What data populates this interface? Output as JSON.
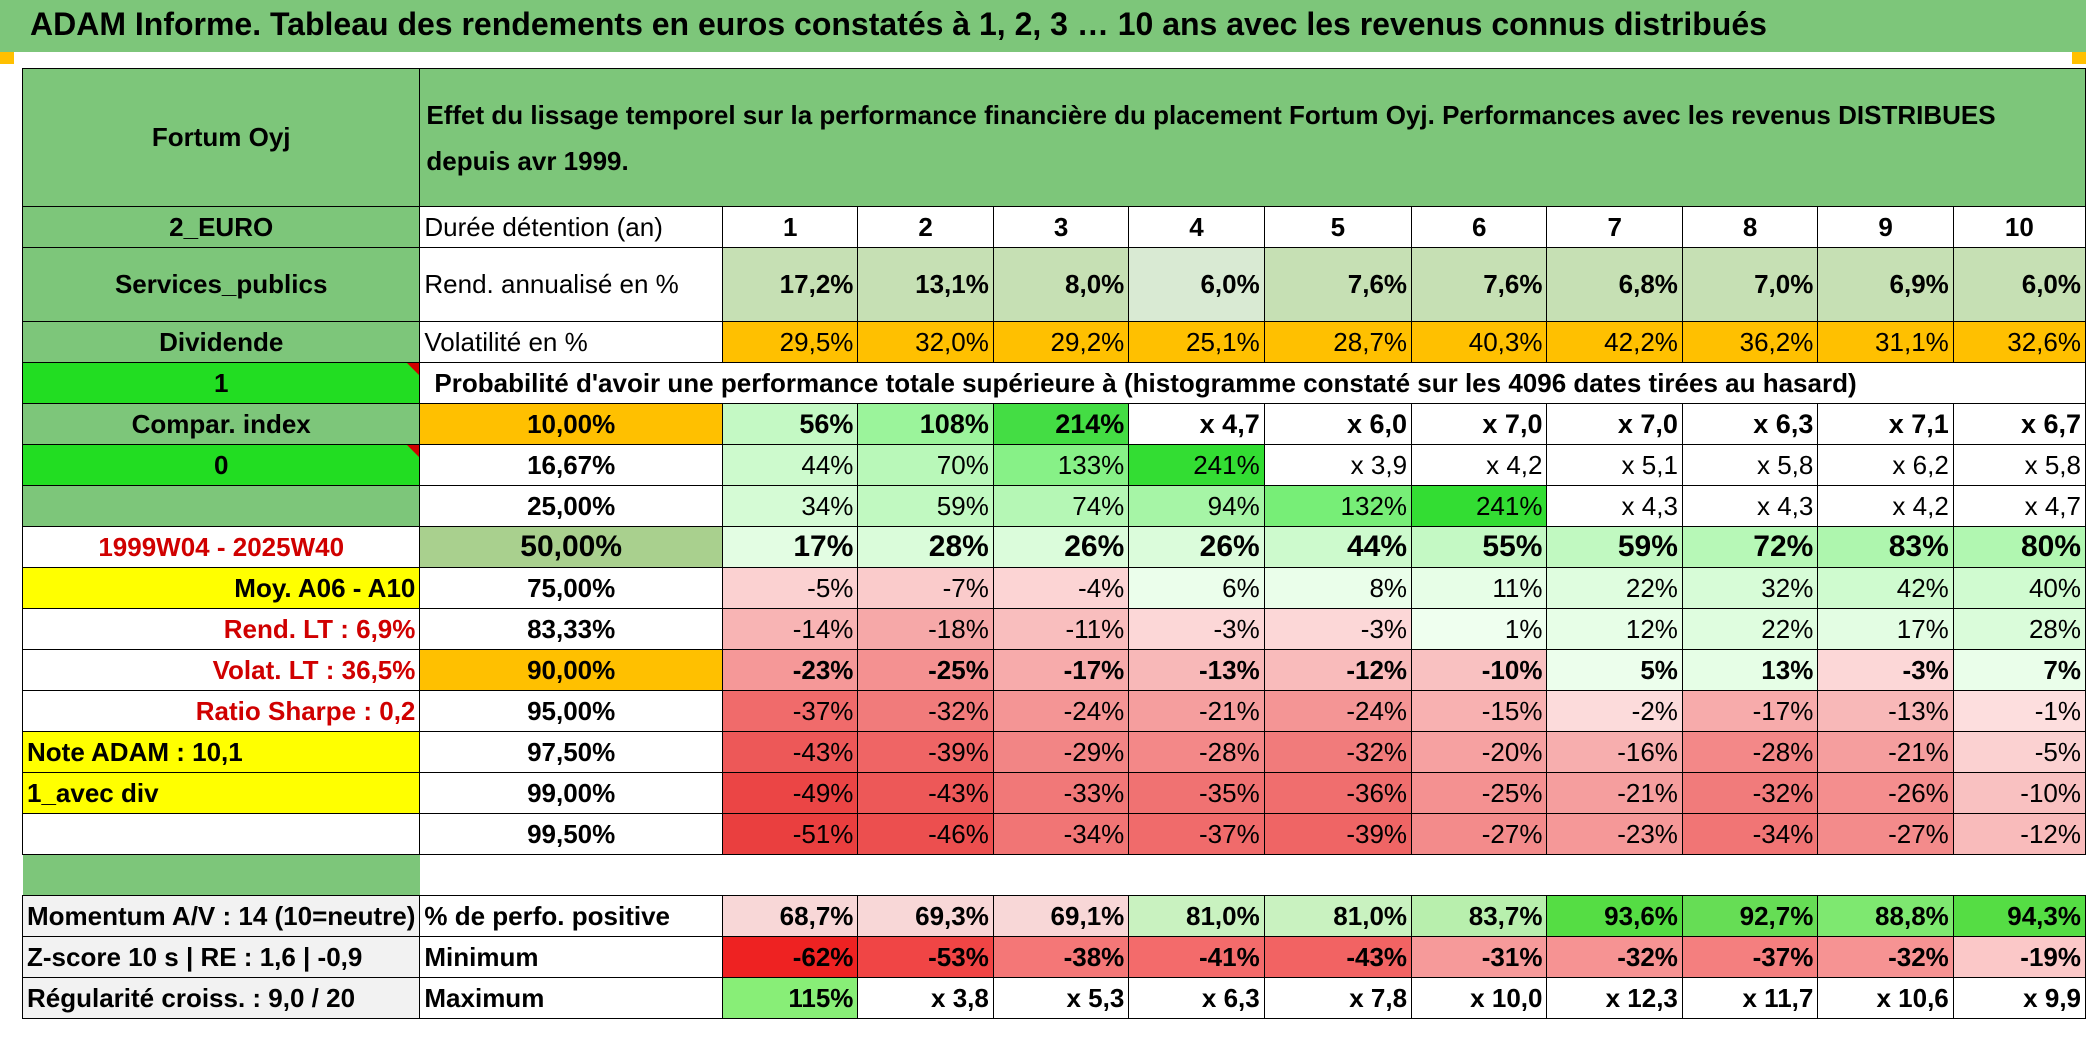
{
  "title": "ADAM Informe. Tableau des rendements en euros constatés à 1, 2, 3 … 10 ans avec les revenus connus distribués",
  "fund_name": "Fortum Oyj",
  "description": "Effet du lissage temporel sur la performance financière du placement Fortum Oyj. Performances avec les revenus DISTRIBUES depuis avr 1999.",
  "left_labels": {
    "currency": "2_EURO",
    "sector": "Services_publics",
    "income": "Dividende",
    "flag1": "1",
    "compar": "Compar. index",
    "flag0": "0",
    "period": "1999W04 - 2025W40",
    "moy": "Moy. A06 - A10",
    "rend_lt": "Rend. LT :   6,9%",
    "volat_lt": "Volat. LT :   36,5%",
    "sharpe": "Ratio Sharpe :    0,2",
    "note": "Note ADAM : 10,1",
    "avec_div": "1_avec div"
  },
  "holding": {
    "label": "Durée détention (an)",
    "years": [
      "1",
      "2",
      "3",
      "4",
      "5",
      "6",
      "7",
      "8",
      "9",
      "10"
    ]
  },
  "rend": {
    "label": "Rend. annualisé en %",
    "values": [
      "17,2%",
      "13,1%",
      "8,0%",
      "6,0%",
      "7,6%",
      "7,6%",
      "6,8%",
      "7,0%",
      "6,9%",
      "6,0%"
    ]
  },
  "vol": {
    "label": "Volatilité en %",
    "values": [
      "29,5%",
      "32,0%",
      "29,2%",
      "25,1%",
      "28,7%",
      "40,3%",
      "42,2%",
      "36,2%",
      "31,1%",
      "32,6%"
    ]
  },
  "prob_title": "Probabilité d'avoir une performance totale supérieure à (histogramme constaté sur les 4096 dates tirées au hasard)",
  "prob_rows": [
    {
      "p": "10,00%",
      "values": [
        "56%",
        "108%",
        "214%",
        "x 4,7",
        "x 6,0",
        "x 7,0",
        "x 7,0",
        "x 6,3",
        "x 7,1",
        "x 6,7"
      ]
    },
    {
      "p": "16,67%",
      "values": [
        "44%",
        "70%",
        "133%",
        "241%",
        "x 3,9",
        "x 4,2",
        "x 5,1",
        "x 5,8",
        "x 6,2",
        "x 5,8"
      ]
    },
    {
      "p": "25,00%",
      "values": [
        "34%",
        "59%",
        "74%",
        "94%",
        "132%",
        "241%",
        "x 4,3",
        "x 4,3",
        "x 4,2",
        "x 4,7"
      ]
    },
    {
      "p": "50,00%",
      "values": [
        "17%",
        "28%",
        "26%",
        "26%",
        "44%",
        "55%",
        "59%",
        "72%",
        "83%",
        "80%"
      ]
    },
    {
      "p": "75,00%",
      "values": [
        "-5%",
        "-7%",
        "-4%",
        "6%",
        "8%",
        "11%",
        "22%",
        "32%",
        "42%",
        "40%"
      ]
    },
    {
      "p": "83,33%",
      "values": [
        "-14%",
        "-18%",
        "-11%",
        "-3%",
        "-3%",
        "1%",
        "12%",
        "22%",
        "17%",
        "28%"
      ]
    },
    {
      "p": "90,00%",
      "values": [
        "-23%",
        "-25%",
        "-17%",
        "-13%",
        "-12%",
        "-10%",
        "5%",
        "13%",
        "-3%",
        "7%"
      ]
    },
    {
      "p": "95,00%",
      "values": [
        "-37%",
        "-32%",
        "-24%",
        "-21%",
        "-24%",
        "-15%",
        "-2%",
        "-17%",
        "-13%",
        "-1%"
      ]
    },
    {
      "p": "97,50%",
      "values": [
        "-43%",
        "-39%",
        "-29%",
        "-28%",
        "-32%",
        "-20%",
        "-16%",
        "-28%",
        "-21%",
        "-5%"
      ]
    },
    {
      "p": "99,00%",
      "values": [
        "-49%",
        "-43%",
        "-33%",
        "-35%",
        "-36%",
        "-25%",
        "-21%",
        "-32%",
        "-26%",
        "-10%"
      ]
    },
    {
      "p": "99,50%",
      "values": [
        "-51%",
        "-46%",
        "-34%",
        "-37%",
        "-39%",
        "-27%",
        "-23%",
        "-34%",
        "-27%",
        "-12%"
      ]
    }
  ],
  "stats": [
    {
      "left": "Momentum A/V : 14 (10=neutre)",
      "label": "% de perfo. positive",
      "values": [
        "68,7%",
        "69,3%",
        "69,1%",
        "81,0%",
        "81,0%",
        "83,7%",
        "93,6%",
        "92,7%",
        "88,8%",
        "94,3%"
      ]
    },
    {
      "left": "Z-score 10 s | RE : 1,6 | -0,9",
      "label": "Minimum",
      "values": [
        "-62%",
        "-53%",
        "-38%",
        "-41%",
        "-43%",
        "-31%",
        "-32%",
        "-37%",
        "-32%",
        "-19%"
      ]
    },
    {
      "left": "Régularité croiss. : 9,0 / 20",
      "label": "Maximum",
      "values": [
        "115%",
        "x 3,8",
        "x 5,3",
        "x 6,3",
        "x 7,8",
        "x 10,0",
        "x 12,3",
        "x 11,7",
        "x 10,6",
        "x 9,9"
      ]
    }
  ],
  "colors": {
    "header_green": "#7dc67a",
    "bright_green": "#22dd22",
    "orange": "#ffc000",
    "yellow": "#ffff00",
    "red_text": "#d00000"
  }
}
